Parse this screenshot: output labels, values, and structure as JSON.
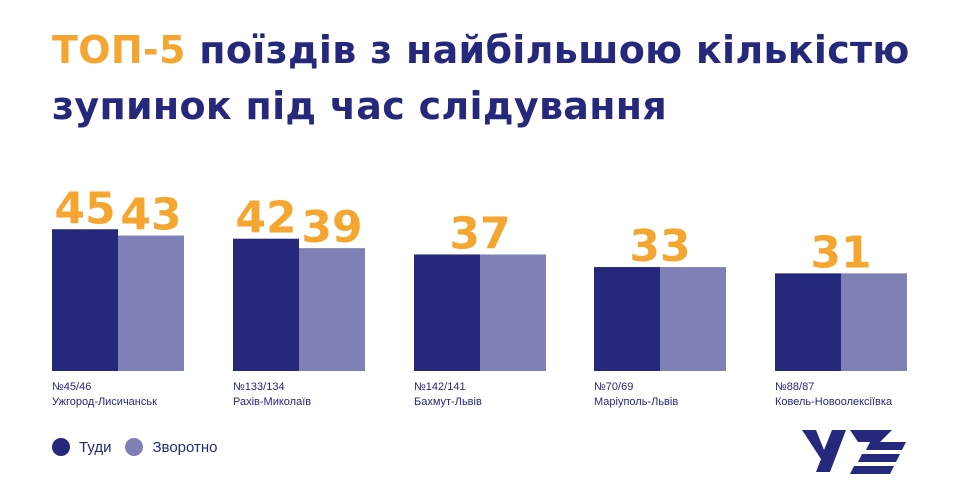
{
  "title": {
    "accent": "ТОП-5",
    "line1_rest": " поїздів з найбільшою кількістю",
    "line2": "зупинок під час слідування"
  },
  "colors": {
    "forward": "#26287c",
    "return": "#7f80b6",
    "value_label": "#f5a630",
    "text": "#26287c"
  },
  "legend": [
    {
      "label": "Туди",
      "color": "#26287c"
    },
    {
      "label": "Зворотно",
      "color": "#7f80b6"
    }
  ],
  "logo": {
    "text": "УЗ",
    "icon": "uz-logo"
  },
  "chart_data": {
    "type": "bar",
    "title": "ТОП-5 поїздів з найбільшою кількістю зупинок під час слідування",
    "xlabel": "",
    "ylabel": "",
    "ylim": [
      0,
      50
    ],
    "grid": false,
    "legend_position": "bottom-left",
    "categories": [
      {
        "number": "№45/46",
        "route": "Ужгород-Лисичанськ"
      },
      {
        "number": "№133/134",
        "route": "Рахів-Миколаїв"
      },
      {
        "number": "№142/141",
        "route": "Бахмут-Львів"
      },
      {
        "number": "№70/69",
        "route": "Маріуполь-Львів"
      },
      {
        "number": "№88/87",
        "route": "Ковель-Новоолексіївка"
      }
    ],
    "series": [
      {
        "name": "Туди",
        "values": [
          45,
          42,
          37,
          33,
          31
        ]
      },
      {
        "name": "Зворотно",
        "values": [
          43,
          39,
          37,
          33,
          31
        ]
      }
    ],
    "value_labels": [
      [
        "45",
        "43"
      ],
      [
        "42",
        "39"
      ],
      [
        "37"
      ],
      [
        "33"
      ],
      [
        "31"
      ]
    ]
  }
}
